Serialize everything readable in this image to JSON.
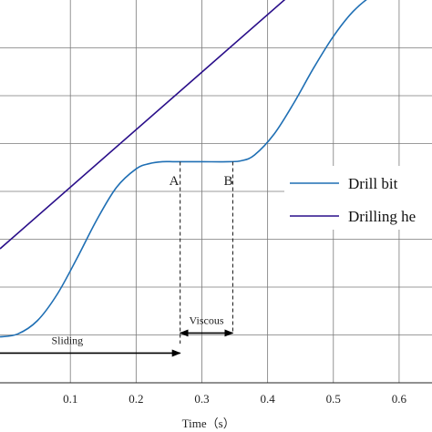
{
  "chart_data": {
    "type": "line",
    "xlabel": "Time（s）",
    "xlim": [
      -0.007,
      0.65
    ],
    "ylim": [
      0,
      8
    ],
    "xticks": [
      0.1,
      0.2,
      0.3,
      0.4,
      0.5,
      0.6
    ],
    "x_tick_labels": [
      "0.1",
      "0.2",
      "0.3",
      "0.4",
      "0.5",
      "0.6"
    ],
    "yticks": [
      1,
      2,
      3,
      4,
      5,
      6,
      7
    ],
    "grid": true,
    "legend_position": "right",
    "legend": [
      "Drill bit",
      "Drilling he"
    ],
    "colors": {
      "drill_bit": "#1f6fb4",
      "drilling_head": "#2a0f8a",
      "annotation": "#000000"
    },
    "series": [
      {
        "name": "Drill bit",
        "x": [
          -0.007,
          0.02,
          0.05,
          0.08,
          0.11,
          0.14,
          0.17,
          0.2,
          0.22,
          0.24,
          0.26,
          0.3,
          0.34,
          0.36,
          0.38,
          0.41,
          0.44,
          0.47,
          0.5,
          0.53,
          0.56,
          0.59,
          0.62,
          0.65
        ],
        "y": [
          0.96,
          1.02,
          1.3,
          1.85,
          2.6,
          3.4,
          4.08,
          4.47,
          4.58,
          4.62,
          4.62,
          4.62,
          4.62,
          4.64,
          4.76,
          5.2,
          5.85,
          6.58,
          7.24,
          7.76,
          8.1,
          8.28,
          8.32,
          8.32
        ]
      },
      {
        "name": "Drilling he",
        "x": [
          -0.007,
          0.6
        ],
        "y": [
          2.8,
          10.1
        ]
      }
    ],
    "annotations": [
      {
        "type": "label",
        "text": "A",
        "x": 0.267,
        "y": 4.13
      },
      {
        "type": "label",
        "text": "B",
        "x": 0.35,
        "y": 4.13
      },
      {
        "type": "vline",
        "x": 0.267,
        "y_from": 4.62,
        "y_to": 0.82
      },
      {
        "type": "vline",
        "x": 0.347,
        "y_from": 4.62,
        "y_to": 1.02
      },
      {
        "type": "arrow",
        "text": "Sliding",
        "x_from": -0.007,
        "x_to": 0.267,
        "y": 0.62
      },
      {
        "type": "arrow",
        "text": "Viscous",
        "x_from": 0.267,
        "x_to": 0.347,
        "y": 1.04
      }
    ]
  }
}
